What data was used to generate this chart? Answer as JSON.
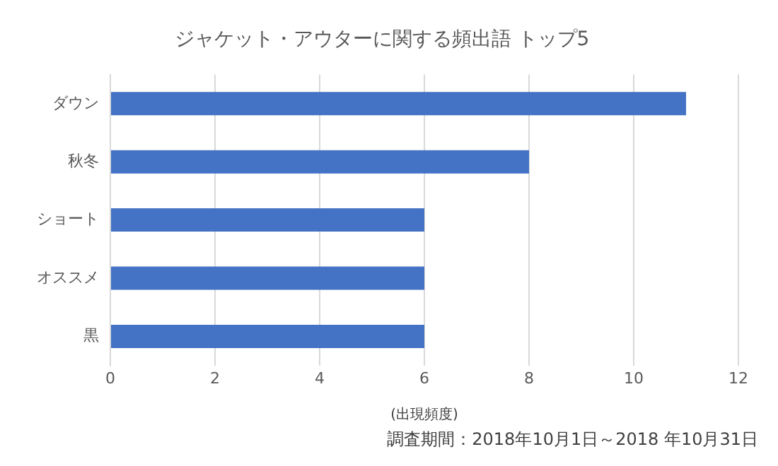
{
  "chart_data": {
    "type": "bar",
    "orientation": "horizontal",
    "title": "ジャケット・アウターに関する頻出語 トップ5",
    "categories": [
      "ダウン",
      "秋冬",
      "ショート",
      "オススメ",
      "黒"
    ],
    "values": [
      11,
      8,
      6,
      6,
      6
    ],
    "color": "#4472c4",
    "xlim": [
      0,
      12
    ],
    "xticks": [
      0,
      2,
      4,
      6,
      8,
      10,
      12
    ],
    "grid": "x",
    "xlabel": "(出現頻度)",
    "annotations": [
      "調査期間：2018年10月1日～2018 年10月31日"
    ]
  }
}
